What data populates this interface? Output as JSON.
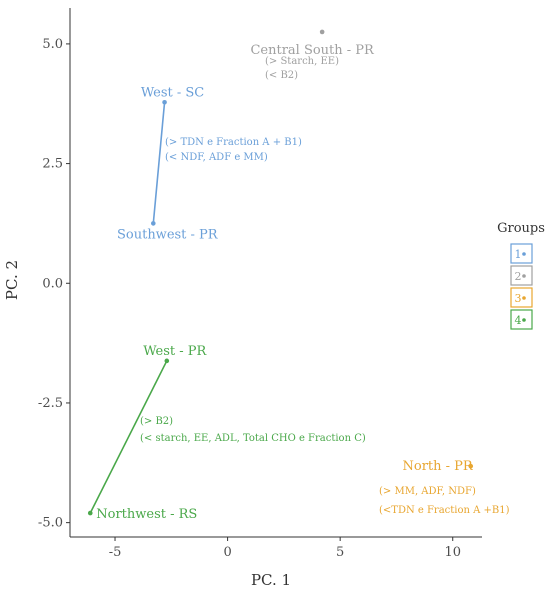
{
  "chart_data": {
    "type": "scatter",
    "xlabel": "PC. 1",
    "ylabel": "PC. 2",
    "xlim": [
      -7,
      11.3
    ],
    "ylim": [
      -5.3,
      5.75
    ],
    "x_ticks": [
      -5,
      0,
      5,
      10
    ],
    "y_ticks": [
      5.0,
      2.5,
      0.0,
      -2.5,
      -5.0
    ],
    "y_tick_labels": [
      "5.0",
      "2.5",
      "0.0",
      "-2.5",
      "-5.0"
    ],
    "grid": false,
    "legend": {
      "title": "Groups",
      "placement": "right",
      "entries": [
        {
          "label": "1",
          "group": "1"
        },
        {
          "label": "2",
          "group": "2"
        },
        {
          "label": "3",
          "group": "3"
        },
        {
          "label": "4",
          "group": "4"
        }
      ]
    },
    "colors": {
      "1": "#6a9fd8",
      "2": "#a0a0a0",
      "3": "#e8a630",
      "4": "#4aa84a"
    },
    "points": [
      {
        "label": "Central South - PR",
        "x": 4.2,
        "y": 5.25,
        "group": "2"
      },
      {
        "label": "West - SC",
        "x": -2.8,
        "y": 3.78,
        "group": "1"
      },
      {
        "label": "Southwest - PR",
        "x": -3.3,
        "y": 1.25,
        "group": "1"
      },
      {
        "label": "North - PR",
        "x": 10.8,
        "y": -3.82,
        "group": "3"
      },
      {
        "label": "West - PR",
        "x": -2.7,
        "y": -1.62,
        "group": "4"
      },
      {
        "label": "Northwest - RS",
        "x": -6.1,
        "y": -4.8,
        "group": "4"
      }
    ],
    "segments": [
      {
        "from": "West - SC",
        "to": "Southwest - PR",
        "group": "1"
      },
      {
        "from": "West - PR",
        "to": "Northwest - RS",
        "group": "4"
      }
    ],
    "annotations": [
      {
        "group": "2",
        "lines": [
          "(> Starch, EE)",
          "(< B2)"
        ]
      },
      {
        "group": "1",
        "lines": [
          "(> TDN e Fraction A + B1)",
          "(< NDF, ADF e MM)"
        ]
      },
      {
        "group": "3",
        "lines": [
          "(> MM, ADF, NDF)",
          "(<TDN e Fraction A +B1)"
        ]
      },
      {
        "group": "4",
        "lines": [
          "(> B2)",
          "(< starch, EE, ADL, Total CHO  e Fraction C)"
        ]
      }
    ]
  }
}
